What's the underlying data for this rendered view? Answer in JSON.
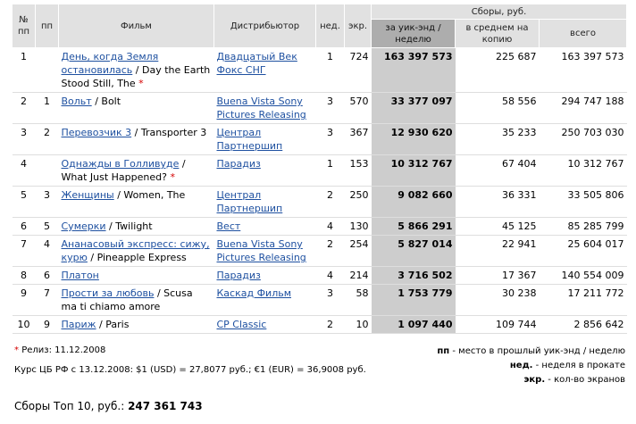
{
  "table": {
    "headers": {
      "num": "№ пп",
      "prev": "пп",
      "film": "Фильм",
      "distributor": "Дистрибьютор",
      "weeks": "нед.",
      "screens": "экр.",
      "gross_group": "Сборы, руб.",
      "weekend": "за уик-энд / неделю",
      "avg": "в среднем на копию",
      "total": "всего"
    },
    "rows": [
      {
        "num": "1",
        "prev": "",
        "title_ru": "День, когда Земля остановилась",
        "title_en": "Day the Earth Stood Still, The",
        "new": true,
        "distributor": "Двадцатый Век Фокс СНГ",
        "weeks": "1",
        "screens": "724",
        "weekend": "163 397 573",
        "avg": "225 687",
        "total": "163 397 573"
      },
      {
        "num": "2",
        "prev": "1",
        "title_ru": "Вольт",
        "title_en": "Bolt",
        "new": false,
        "distributor": "Buena Vista Sony Pictures Releasing",
        "weeks": "3",
        "screens": "570",
        "weekend": "33 377 097",
        "avg": "58 556",
        "total": "294 747 188"
      },
      {
        "num": "3",
        "prev": "2",
        "title_ru": "Перевозчик 3",
        "title_en": "Transporter 3",
        "new": false,
        "distributor": "Централ Партнершип",
        "weeks": "3",
        "screens": "367",
        "weekend": "12 930 620",
        "avg": "35 233",
        "total": "250 703 030"
      },
      {
        "num": "4",
        "prev": "",
        "title_ru": "Однажды в Голливуде",
        "title_en": "What Just Happened?",
        "new": true,
        "distributor": "Парадиз",
        "weeks": "1",
        "screens": "153",
        "weekend": "10 312 767",
        "avg": "67 404",
        "total": "10 312 767"
      },
      {
        "num": "5",
        "prev": "3",
        "title_ru": "Женщины",
        "title_en": "Women, The",
        "new": false,
        "distributor": "Централ Партнершип",
        "weeks": "2",
        "screens": "250",
        "weekend": "9 082 660",
        "avg": "36 331",
        "total": "33 505 806"
      },
      {
        "num": "6",
        "prev": "5",
        "title_ru": "Сумерки",
        "title_en": "Twilight",
        "new": false,
        "distributor": "Вест",
        "weeks": "4",
        "screens": "130",
        "weekend": "5 866 291",
        "avg": "45 125",
        "total": "85 285 799"
      },
      {
        "num": "7",
        "prev": "4",
        "title_ru": "Ананасовый экспресс: сижу, курю",
        "title_en": "Pineapple Express",
        "new": false,
        "distributor": "Buena Vista Sony Pictures Releasing",
        "weeks": "2",
        "screens": "254",
        "weekend": "5 827 014",
        "avg": "22 941",
        "total": "25 604 017"
      },
      {
        "num": "8",
        "prev": "6",
        "title_ru": "Платон",
        "title_en": "",
        "new": false,
        "distributor": "Парадиз",
        "weeks": "4",
        "screens": "214",
        "weekend": "3 716 502",
        "avg": "17 367",
        "total": "140 554 009"
      },
      {
        "num": "9",
        "prev": "7",
        "title_ru": "Прости за любовь",
        "title_en": "Scusa ma ti chiamo amore",
        "new": false,
        "distributor": "Каскад Фильм",
        "weeks": "3",
        "screens": "58",
        "weekend": "1 753 779",
        "avg": "30 238",
        "total": "17 211 772"
      },
      {
        "num": "10",
        "prev": "9",
        "title_ru": "Париж",
        "title_en": "Paris",
        "new": false,
        "distributor": "CP Classic",
        "weeks": "2",
        "screens": "10",
        "weekend": "1 097 440",
        "avg": "109 744",
        "total": "2 856 642"
      }
    ]
  },
  "notes": {
    "star": "*",
    "release_label": "Релиз: 11.12.2008",
    "rate": "Курс ЦБ РФ с 13.12.2008:  $1 (USD) = 27,8077 руб.;  €1 (EUR) = 36,9008 руб.",
    "total_label": "Сборы Топ 10, руб.:",
    "total_value": "247 361 743"
  },
  "legend": [
    {
      "key": "пп",
      "text": " - место в прошлый уик-энд / неделю"
    },
    {
      "key": "нед.",
      "text": " - неделя в прокате"
    },
    {
      "key": "экр.",
      "text": " - кол-во экранов"
    }
  ],
  "colors": {
    "header_bg": "#e1e1e1",
    "header_dark": "#adadad",
    "weekend_col": "#cdcdcd",
    "link": "#1e50a0",
    "star": "#d40000"
  }
}
